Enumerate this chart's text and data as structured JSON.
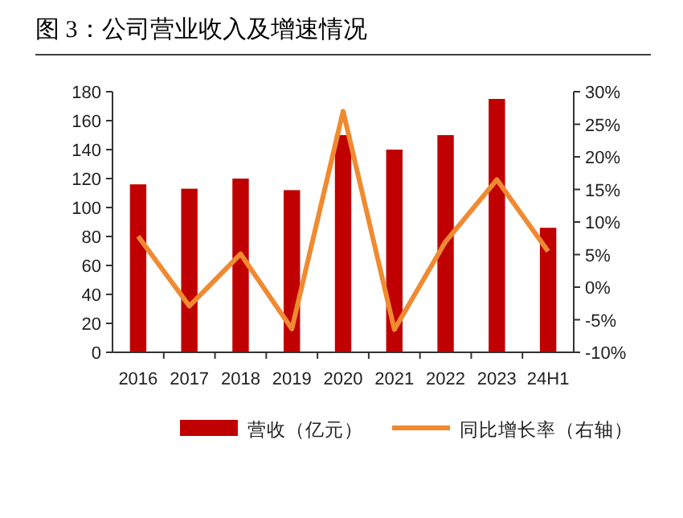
{
  "chart_data": {
    "type": "bar",
    "title": "图 3：公司营业收入及增速情况",
    "categories": [
      "2016",
      "2017",
      "2018",
      "2019",
      "2020",
      "2021",
      "2022",
      "2023",
      "24H1"
    ],
    "series": [
      {
        "name": "营收（亿元）",
        "color": "#c00000",
        "values": [
          116,
          113,
          120,
          112,
          150,
          140,
          150,
          175,
          86
        ]
      },
      {
        "name": "同比增长率（右轴）",
        "type": "line",
        "axis": "y2",
        "color": "#f08a30",
        "values": [
          7.8,
          -2.9,
          5.1,
          -6.4,
          27,
          -6.5,
          7,
          16.5,
          5.5
        ]
      }
    ],
    "ylim": [
      0,
      180
    ],
    "yticks": [
      0,
      20,
      40,
      60,
      80,
      100,
      120,
      140,
      160,
      180
    ],
    "y2lim": [
      -10,
      30
    ],
    "y2ticks": [
      {
        "value": -10,
        "label": "-10%"
      },
      {
        "value": -5,
        "label": "-5%"
      },
      {
        "value": 0,
        "label": "0%"
      },
      {
        "value": 5,
        "label": "5%"
      },
      {
        "value": 10,
        "label": "10%"
      },
      {
        "value": 15,
        "label": "15%"
      },
      {
        "value": 20,
        "label": "20%"
      },
      {
        "value": 25,
        "label": "25%"
      },
      {
        "value": 30,
        "label": "30%"
      }
    ],
    "legend": "bottom",
    "grid": false
  }
}
